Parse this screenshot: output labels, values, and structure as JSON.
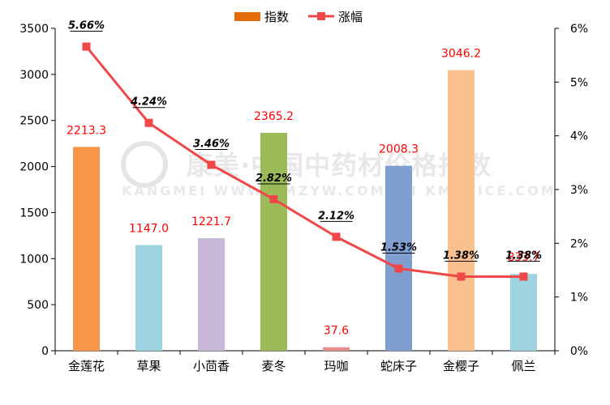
{
  "chart_data": {
    "type": "bar",
    "categories": [
      "金莲花",
      "草果",
      "小茴香",
      "麦冬",
      "玛咖",
      "蛇床子",
      "金樱子",
      "佩兰"
    ],
    "series": [
      {
        "name": "指数",
        "type": "bar",
        "axis": "left",
        "values": [
          2213.3,
          1147.0,
          1221.7,
          2365.2,
          37.6,
          2008.3,
          3046.2,
          833.7
        ],
        "labels": [
          "2213.3",
          "1147.0",
          "1221.7",
          "2365.2",
          "37.6",
          "2008.3",
          "3046.2",
          "833.7"
        ],
        "colors": [
          "#F79646",
          "#9DD3E0",
          "#C6B8D6",
          "#9BBB59",
          "#E88C8C",
          "#7F9FD1",
          "#FAC090",
          "#9DD3E0"
        ],
        "legend_color": "#E26B0A"
      },
      {
        "name": "涨幅",
        "type": "line",
        "axis": "right",
        "values": [
          5.66,
          4.24,
          3.46,
          2.82,
          2.12,
          1.53,
          1.38,
          1.38
        ],
        "labels": [
          "5.66%",
          "4.24%",
          "3.46%",
          "2.82%",
          "2.12%",
          "1.53%",
          "1.38%",
          "1.38%"
        ],
        "color": "#F04848"
      }
    ],
    "y_left": {
      "min": 0,
      "max": 3500,
      "ticks": [
        "0",
        "500",
        "1000",
        "1500",
        "2000",
        "2500",
        "3000",
        "3500"
      ]
    },
    "y_right": {
      "min": 0,
      "max": 6,
      "ticks": [
        "0%",
        "1%",
        "2%",
        "3%",
        "4%",
        "5%",
        "6%"
      ]
    },
    "legend_position": "top-center",
    "grid": false,
    "watermark": "康美·中国中药材价格指数 KANGMEI WWW.KMZYW.COM.CN KMPRICE.COM",
    "label_color": "#FF0000"
  }
}
